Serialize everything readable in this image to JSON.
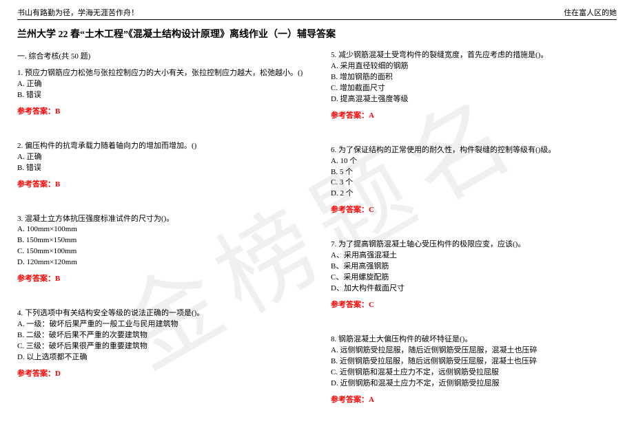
{
  "header": {
    "left": "书山有路勤为径，学海无涯苦作舟！",
    "right": "住在富人区的她"
  },
  "watermark": "金榜题名",
  "title": "兰州大学 22 春“土木工程”《混凝土结构设计原理》离线作业（一）辅导答案",
  "subtitle": "一. 综合考核(共 50 题)",
  "answer_label_prefix": "参考答案：",
  "left_questions": [
    {
      "q": "1. 预应力钢筋应力松弛与张拉控制应力的大小有关，张拉控制应力越大，松弛越小。()",
      "opts": [
        "A. 正确",
        "B. 错误"
      ],
      "ans": "B"
    },
    {
      "q": "2. 偏压构件的抗弯承载力随着轴向力的增加而增加。()",
      "opts": [
        "A. 正确",
        "B. 错误"
      ],
      "ans": "B"
    },
    {
      "q": "3. 混凝土立方体抗压强度标准试件的尺寸为()。",
      "opts": [
        "A. 100mm×100mm",
        "B. 150mm×150mm",
        "C. 150mm×100mm",
        "D. 120mm×120mm"
      ],
      "ans": "B"
    },
    {
      "q": "4. 下列选项中有关结构安全等级的说法正确的一项是()。",
      "opts": [
        "A. 一级：破坏后果严重的一般工业与民用建筑物",
        "B. 二级：破坏后果不严重的次要建筑物",
        "C. 三级：破坏后果很严重的重要建筑物",
        "D. 以上选项都不正确"
      ],
      "ans": "D"
    }
  ],
  "right_questions": [
    {
      "q": "5. 减少钢筋混凝土受弯构件的裂缝宽度，首先应考虑的措施是()。",
      "opts": [
        "A. 采用直径较细的钢筋",
        "B. 增加钢筋的面积",
        "C. 增加截面尺寸",
        "D. 提高混凝土强度等级"
      ],
      "ans": "A"
    },
    {
      "q": "6. 为了保证结构的正常使用的耐久性，构件裂缝的控制等级有()级。",
      "opts": [
        "A. 10 个",
        "B. 5 个",
        "C. 3 个",
        "D. 2 个"
      ],
      "ans": "C"
    },
    {
      "q": "7. 为了提高钢筋混凝土轴心受压构件的极限应变，应该()。",
      "opts": [
        "A、采用高强混凝土",
        "B、采用高强钢筋",
        "C、采用螺旋配筋",
        "D、加大构件截面尺寸"
      ],
      "ans": "C"
    },
    {
      "q": "8. 钢筋混凝土大偏压构件的破坏特征是()。",
      "opts": [
        "A. 远侧钢筋受拉屈服，随后近侧钢筋受压屈服，混凝土也压碎",
        "B. 近侧钢筋受拉屈服，随后远侧钢筋受压屈服，混凝土也压碎",
        "C. 近侧钢筋和混凝土应力不定，远侧钢筋受拉屈服",
        "D. 近侧钢筋和混凝土应力不定，近侧钢筋受拉屈服"
      ],
      "ans": "A"
    }
  ]
}
